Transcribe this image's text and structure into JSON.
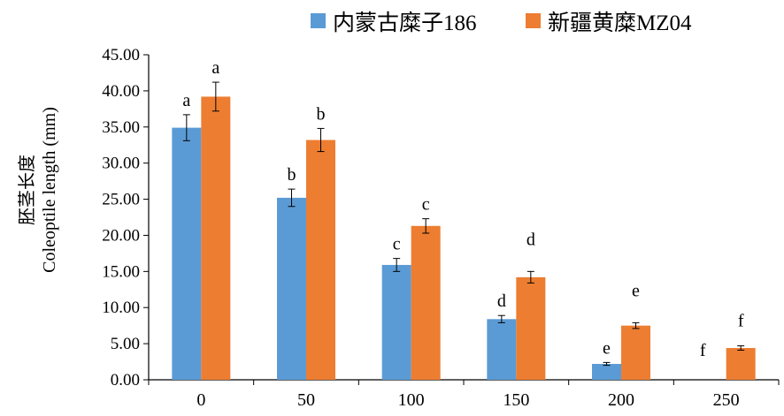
{
  "chart_data": {
    "type": "bar",
    "categories": [
      "0",
      "50",
      "100",
      "150",
      "200",
      "250"
    ],
    "series": [
      {
        "name": "内蒙古糜子186",
        "color": "#5b9bd5",
        "values": [
          34.9,
          25.2,
          15.9,
          8.4,
          2.2,
          0
        ],
        "errors": [
          1.8,
          1.2,
          0.9,
          0.5,
          0.2,
          0
        ],
        "labels": [
          "a",
          "b",
          "c",
          "d",
          "e",
          "f"
        ]
      },
      {
        "name": "新疆黄糜MZ04",
        "color": "#ed7d31",
        "values": [
          39.2,
          33.2,
          21.3,
          14.2,
          7.5,
          4.4
        ],
        "errors": [
          2.0,
          1.6,
          1.0,
          0.8,
          0.4,
          0.3
        ],
        "labels": [
          "a",
          "b",
          "c",
          "d",
          "e",
          "f"
        ]
      }
    ],
    "ylabel_lines": [
      "胚茎长度",
      "Coleoptile length (mm)"
    ],
    "xlabel": "",
    "ylim": [
      0,
      45
    ],
    "yticks": [
      "0.00",
      "5.00",
      "10.00",
      "15.00",
      "20.00",
      "25.00",
      "30.00",
      "35.00",
      "40.00",
      "45.00"
    ],
    "legend_position": "top-right",
    "grid": false
  }
}
